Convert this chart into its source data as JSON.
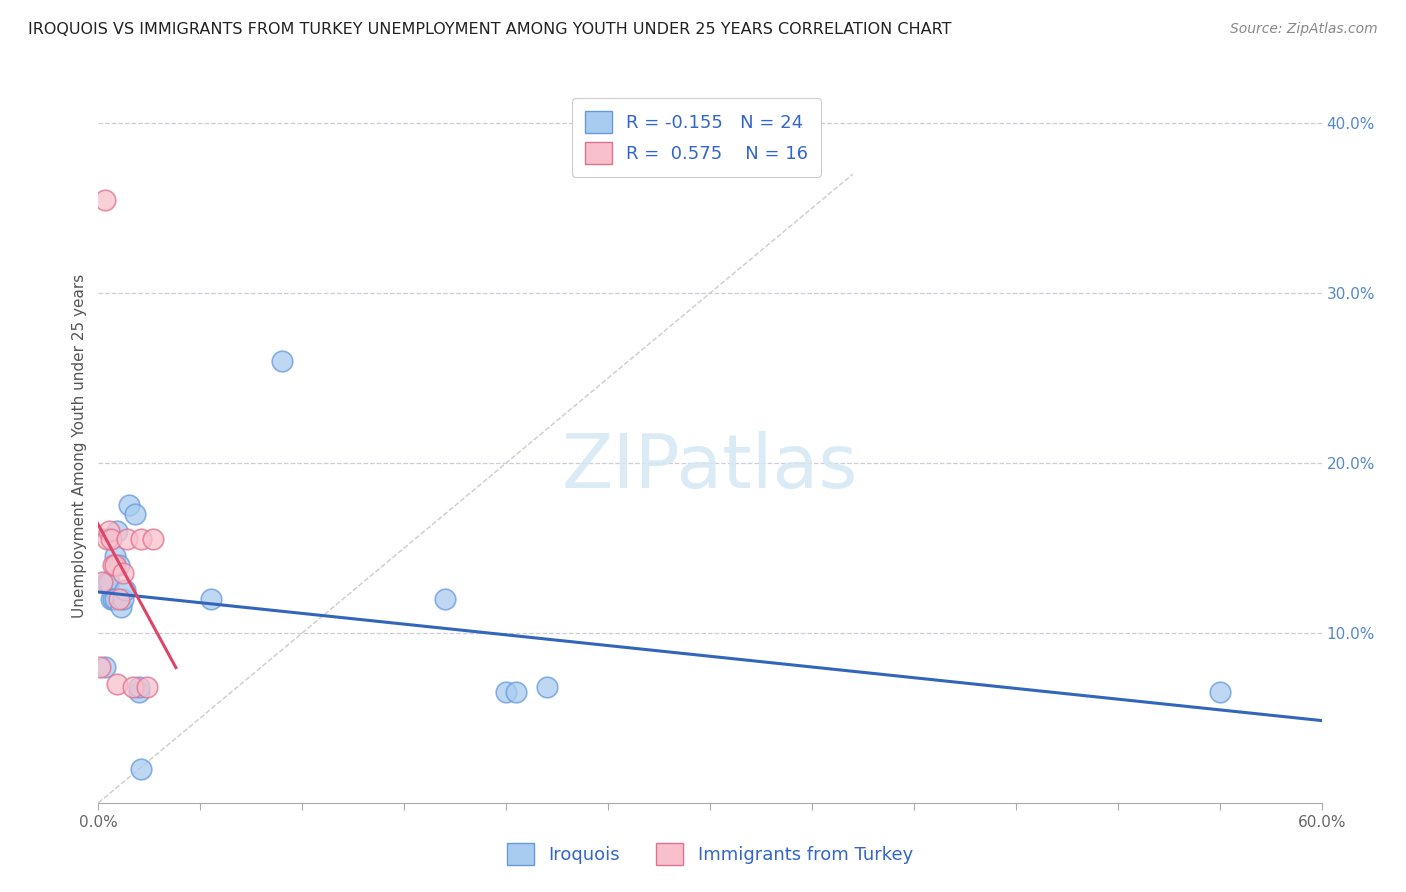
{
  "title": "IROQUOIS VS IMMIGRANTS FROM TURKEY UNEMPLOYMENT AMONG YOUTH UNDER 25 YEARS CORRELATION CHART",
  "source": "Source: ZipAtlas.com",
  "ylabel": "Unemployment Among Youth under 25 years",
  "legend_label1": "Iroquois",
  "legend_label2": "Immigrants from Turkey",
  "R1": -0.155,
  "N1": 24,
  "R2": 0.575,
  "N2": 16,
  "xlim": [
    0.0,
    0.6
  ],
  "ylim": [
    0.0,
    0.42
  ],
  "color_blue_fill": "#A8CCF0",
  "color_blue_edge": "#6699DD",
  "color_pink_fill": "#F8C0CC",
  "color_pink_edge": "#E07090",
  "color_line_blue": "#3366BB",
  "color_line_pink": "#DD4466",
  "color_dash": "#CCCCCC",
  "background": "#ffffff",
  "iroquois_x": [
    0.003,
    0.004,
    0.005,
    0.006,
    0.007,
    0.008,
    0.008,
    0.009,
    0.01,
    0.011,
    0.012,
    0.013,
    0.015,
    0.018,
    0.02,
    0.02,
    0.021,
    0.055,
    0.09,
    0.17,
    0.2,
    0.205,
    0.22,
    0.55
  ],
  "iroquois_y": [
    0.08,
    0.13,
    0.13,
    0.12,
    0.12,
    0.12,
    0.145,
    0.16,
    0.14,
    0.115,
    0.12,
    0.125,
    0.175,
    0.17,
    0.065,
    0.068,
    0.02,
    0.12,
    0.26,
    0.12,
    0.065,
    0.065,
    0.068,
    0.065
  ],
  "turkey_x": [
    0.001,
    0.002,
    0.003,
    0.004,
    0.005,
    0.006,
    0.007,
    0.008,
    0.009,
    0.01,
    0.012,
    0.014,
    0.017,
    0.021,
    0.024,
    0.027
  ],
  "turkey_y": [
    0.08,
    0.13,
    0.355,
    0.155,
    0.16,
    0.155,
    0.14,
    0.14,
    0.07,
    0.12,
    0.135,
    0.155,
    0.068,
    0.155,
    0.068,
    0.155
  ],
  "xtick_positions": [
    0.0,
    0.05,
    0.1,
    0.15,
    0.2,
    0.25,
    0.3,
    0.35,
    0.4,
    0.45,
    0.5,
    0.55,
    0.6
  ],
  "ytick_right_positions": [
    0.1,
    0.2,
    0.3,
    0.4
  ]
}
